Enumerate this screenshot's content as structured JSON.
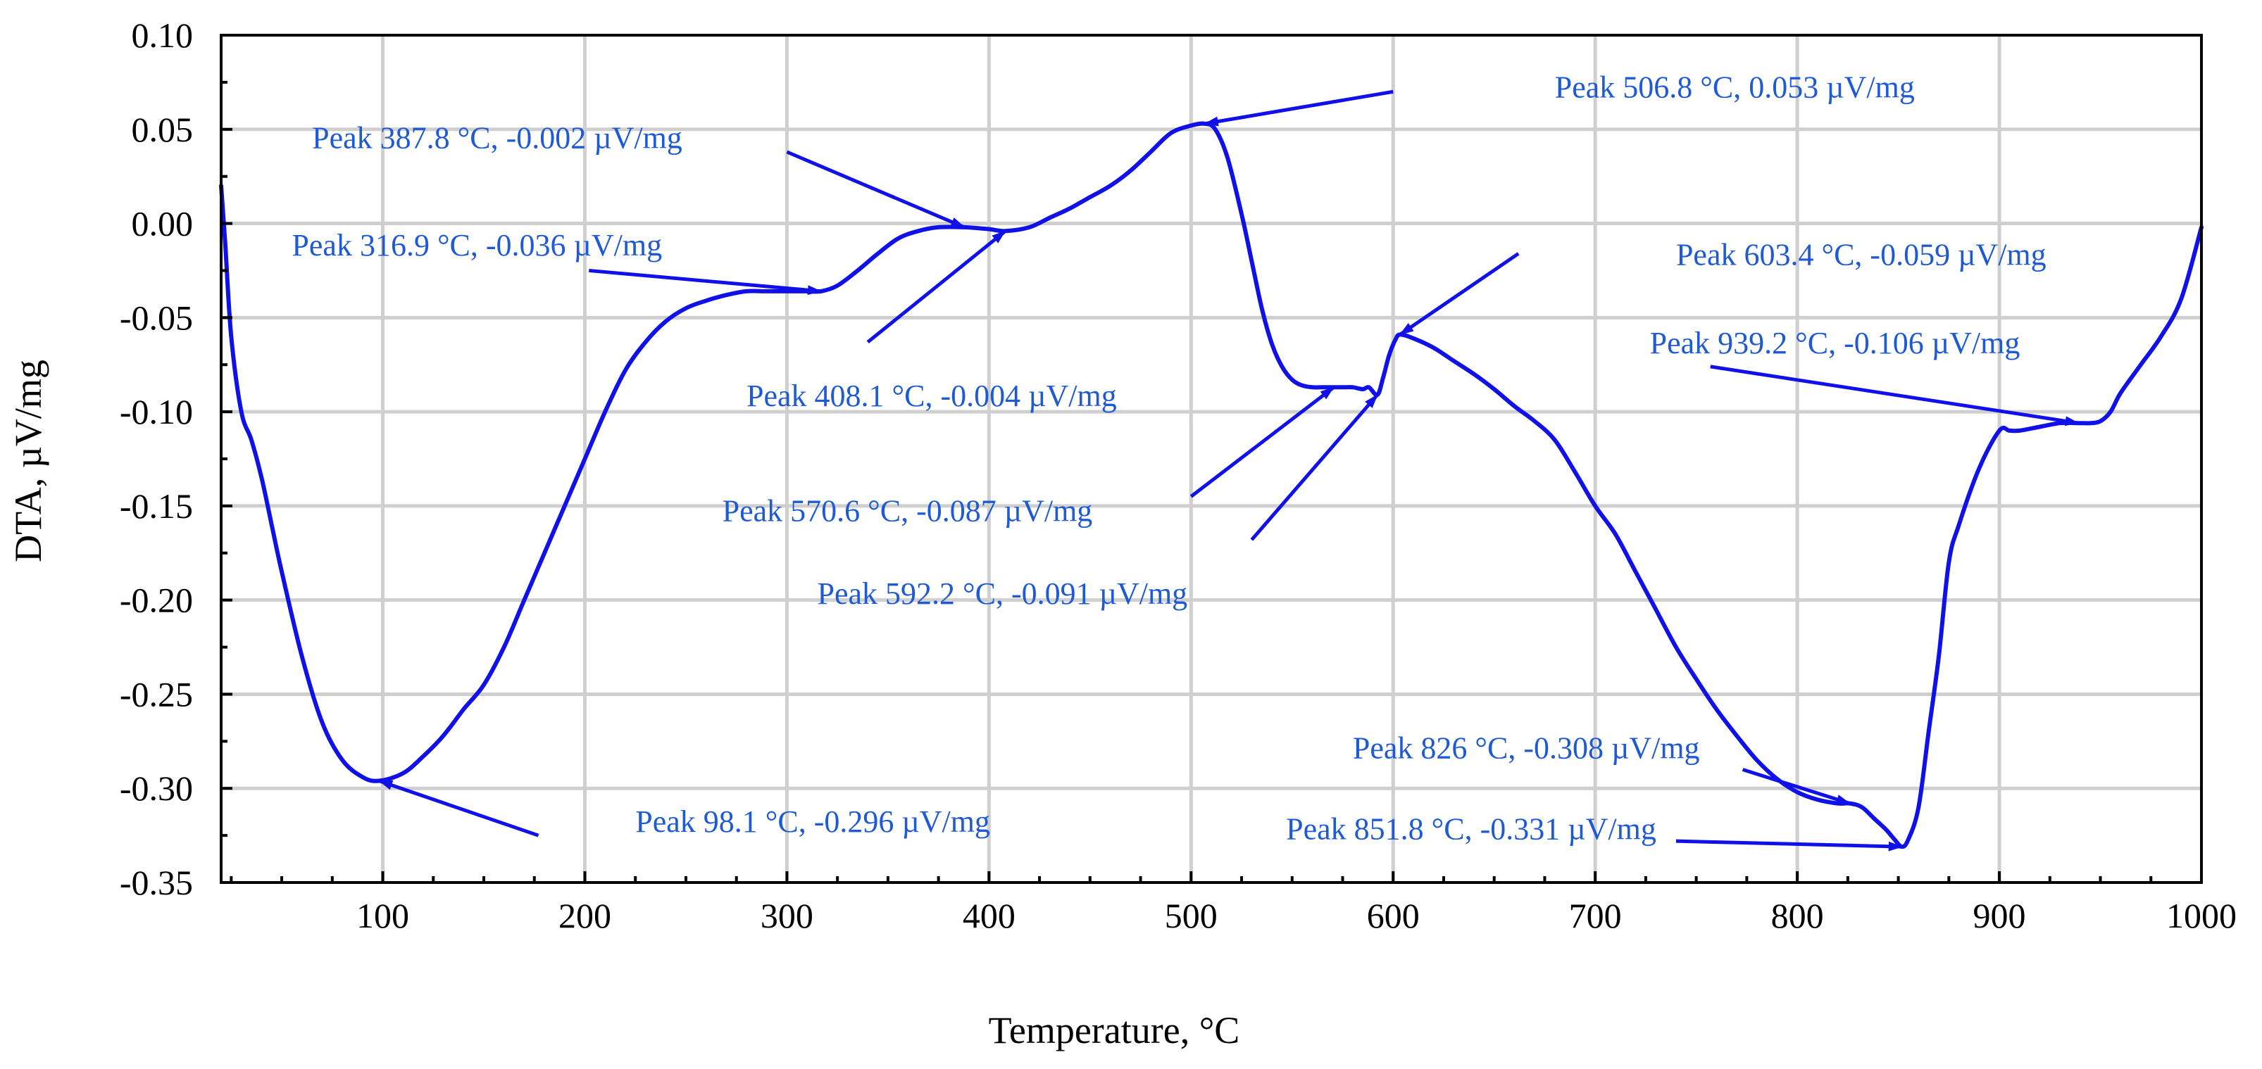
{
  "chart_data": {
    "type": "line",
    "xlabel": "Temperature, °C",
    "ylabel": "DTA, µV/mg",
    "xlim": [
      20,
      1000
    ],
    "ylim": [
      -0.35,
      0.1
    ],
    "grid": true,
    "x_ticks": [
      100,
      200,
      300,
      400,
      500,
      600,
      700,
      800,
      900,
      1000
    ],
    "x_tick_labels": [
      "100",
      "200",
      "300",
      "400",
      "500",
      "600",
      "700",
      "800",
      "900",
      "1000"
    ],
    "y_ticks": [
      0.1,
      0.05,
      0.0,
      -0.05,
      -0.1,
      -0.15,
      -0.2,
      -0.25,
      -0.3,
      -0.35
    ],
    "y_tick_labels": [
      "0.10",
      "0.05",
      "0.00",
      "-0.05",
      "-0.10",
      "-0.15",
      "-0.20",
      "-0.25",
      "-0.30",
      "-0.35"
    ],
    "series": [
      {
        "color": "#1010e8",
        "x": [
          20,
          22,
          25,
          30,
          35,
          40,
          45,
          50,
          60,
          70,
          80,
          90,
          98.1,
          110,
          120,
          130,
          140,
          150,
          160,
          170,
          180,
          190,
          200,
          210,
          220,
          230,
          240,
          250,
          260,
          270,
          280,
          290,
          300,
          310,
          316.9,
          325,
          335,
          345,
          355,
          365,
          375,
          387.8,
          400,
          408.1,
          420,
          430,
          440,
          450,
          460,
          470,
          480,
          490,
          500,
          506.8,
          512,
          518,
          525,
          530,
          535,
          540,
          545,
          550,
          555,
          560,
          565,
          570.6,
          575,
          580,
          585,
          588,
          592.2,
          595,
          598,
          601,
          603.4,
          610,
          620,
          630,
          640,
          650,
          660,
          670,
          680,
          690,
          700,
          710,
          720,
          730,
          740,
          750,
          760,
          770,
          780,
          790,
          800,
          810,
          820,
          826,
          832,
          838,
          844,
          848,
          851.8,
          855,
          860,
          865,
          870,
          875,
          880,
          890,
          900,
          905,
          910,
          920,
          930,
          939.2,
          945,
          950,
          955,
          960,
          970,
          980,
          990,
          1000
        ],
        "y": [
          0.02,
          -0.01,
          -0.06,
          -0.1,
          -0.115,
          -0.135,
          -0.16,
          -0.185,
          -0.23,
          -0.265,
          -0.285,
          -0.294,
          -0.296,
          -0.292,
          -0.283,
          -0.272,
          -0.258,
          -0.245,
          -0.225,
          -0.2,
          -0.175,
          -0.15,
          -0.125,
          -0.1,
          -0.078,
          -0.063,
          -0.052,
          -0.045,
          -0.041,
          -0.038,
          -0.036,
          -0.036,
          -0.036,
          -0.036,
          -0.036,
          -0.033,
          -0.025,
          -0.016,
          -0.008,
          -0.004,
          -0.002,
          -0.002,
          -0.003,
          -0.004,
          -0.002,
          0.003,
          0.008,
          0.014,
          0.02,
          0.028,
          0.038,
          0.048,
          0.052,
          0.053,
          0.05,
          0.035,
          0.005,
          -0.02,
          -0.045,
          -0.064,
          -0.076,
          -0.083,
          -0.086,
          -0.087,
          -0.087,
          -0.087,
          -0.087,
          -0.087,
          -0.088,
          -0.087,
          -0.091,
          -0.082,
          -0.07,
          -0.062,
          -0.059,
          -0.061,
          -0.066,
          -0.073,
          -0.08,
          -0.088,
          -0.097,
          -0.105,
          -0.115,
          -0.132,
          -0.15,
          -0.165,
          -0.185,
          -0.205,
          -0.225,
          -0.242,
          -0.258,
          -0.272,
          -0.285,
          -0.295,
          -0.302,
          -0.306,
          -0.308,
          -0.308,
          -0.31,
          -0.316,
          -0.322,
          -0.327,
          -0.331,
          -0.327,
          -0.31,
          -0.27,
          -0.23,
          -0.18,
          -0.16,
          -0.13,
          -0.11,
          -0.11,
          -0.11,
          -0.108,
          -0.106,
          -0.106,
          -0.106,
          -0.105,
          -0.1,
          -0.09,
          -0.075,
          -0.06,
          -0.04,
          -0.002
        ]
      }
    ],
    "annotations": [
      {
        "text": "Peak 98.1 °C, -0.296 µV/mg",
        "peak": [
          98.1,
          -0.296
        ],
        "arrow_from": [
          177,
          -0.325
        ],
        "label_at": [
          225,
          -0.323
        ]
      },
      {
        "text": "Peak 316.9 °C, -0.036 µV/mg",
        "peak": [
          316.9,
          -0.036
        ],
        "arrow_from": [
          202,
          -0.025
        ],
        "label_at": [
          55,
          -0.017
        ]
      },
      {
        "text": "Peak 387.8 °C, -0.002 µV/mg",
        "peak": [
          387.8,
          -0.002
        ],
        "arrow_from": [
          300,
          0.038
        ],
        "label_at": [
          65,
          0.04
        ]
      },
      {
        "text": "Peak 408.1 °C, -0.004 µV/mg",
        "peak": [
          408.1,
          -0.004
        ],
        "arrow_from": [
          340,
          -0.063
        ],
        "label_at": [
          280,
          -0.097
        ]
      },
      {
        "text": "Peak 506.8 °C, 0.053 µV/mg",
        "peak": [
          506.8,
          0.053
        ],
        "arrow_from": [
          600,
          0.07
        ],
        "label_at": [
          680,
          0.067
        ]
      },
      {
        "text": "Peak 570.6 °C, -0.087 µV/mg",
        "peak": [
          570.6,
          -0.087
        ],
        "arrow_from": [
          500,
          -0.145
        ],
        "label_at": [
          268,
          -0.158
        ]
      },
      {
        "text": "Peak 592.2 °C, -0.091 µV/mg",
        "peak": [
          592.2,
          -0.091
        ],
        "arrow_from": [
          530,
          -0.168
        ],
        "label_at": [
          315,
          -0.202
        ]
      },
      {
        "text": "Peak 603.4 °C, -0.059 µV/mg",
        "peak": [
          603.4,
          -0.059
        ],
        "arrow_from": [
          662,
          -0.016
        ],
        "label_at": [
          740,
          -0.022
        ]
      },
      {
        "text": "Peak 939.2 °C, -0.106 µV/mg",
        "peak": [
          939.2,
          -0.106
        ],
        "arrow_from": [
          757,
          -0.076
        ],
        "label_at": [
          727,
          -0.069
        ]
      },
      {
        "text": "Peak 826 °C, -0.308 µV/mg",
        "peak": [
          826,
          -0.308
        ],
        "arrow_from": [
          773,
          -0.29
        ],
        "label_at": [
          580,
          -0.284
        ]
      },
      {
        "text": "Peak 851.8 °C, -0.331 µV/mg",
        "peak": [
          851.8,
          -0.331
        ],
        "arrow_from": [
          740,
          -0.328
        ],
        "label_at": [
          547,
          -0.327
        ]
      }
    ]
  }
}
